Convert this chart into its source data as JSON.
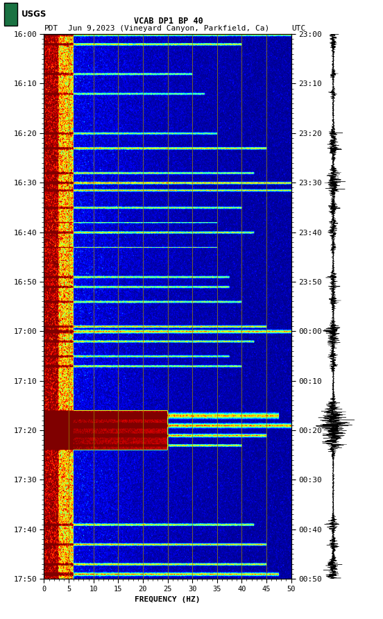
{
  "title_line1": "VCAB DP1 BP 40",
  "title_line2_left": "PDT",
  "title_line2_center": "Jun 9,2023 (Vineyard Canyon, Parkfield, Ca)",
  "title_line2_right": "UTC",
  "xlabel": "FREQUENCY (HZ)",
  "xlim": [
    0,
    50
  ],
  "xticks": [
    0,
    5,
    10,
    15,
    20,
    25,
    30,
    35,
    40,
    45,
    50
  ],
  "freq_gridlines": [
    5,
    10,
    15,
    20,
    25,
    30,
    35,
    40,
    45
  ],
  "pdt_yticks": [
    "16:00",
    "16:10",
    "16:20",
    "16:30",
    "16:40",
    "16:50",
    "17:00",
    "17:10",
    "17:20",
    "17:30",
    "17:40",
    "17:50"
  ],
  "utc_yticks": [
    "23:00",
    "23:10",
    "23:20",
    "23:30",
    "23:40",
    "23:50",
    "00:00",
    "00:10",
    "00:20",
    "00:30",
    "00:40",
    "00:50"
  ],
  "n_time_steps": 660,
  "n_freq_steps": 500,
  "bg_color": "white",
  "usgs_green": "#1a7242",
  "spectrogram_cmap": "jet",
  "fig_width": 5.52,
  "fig_height": 8.92
}
